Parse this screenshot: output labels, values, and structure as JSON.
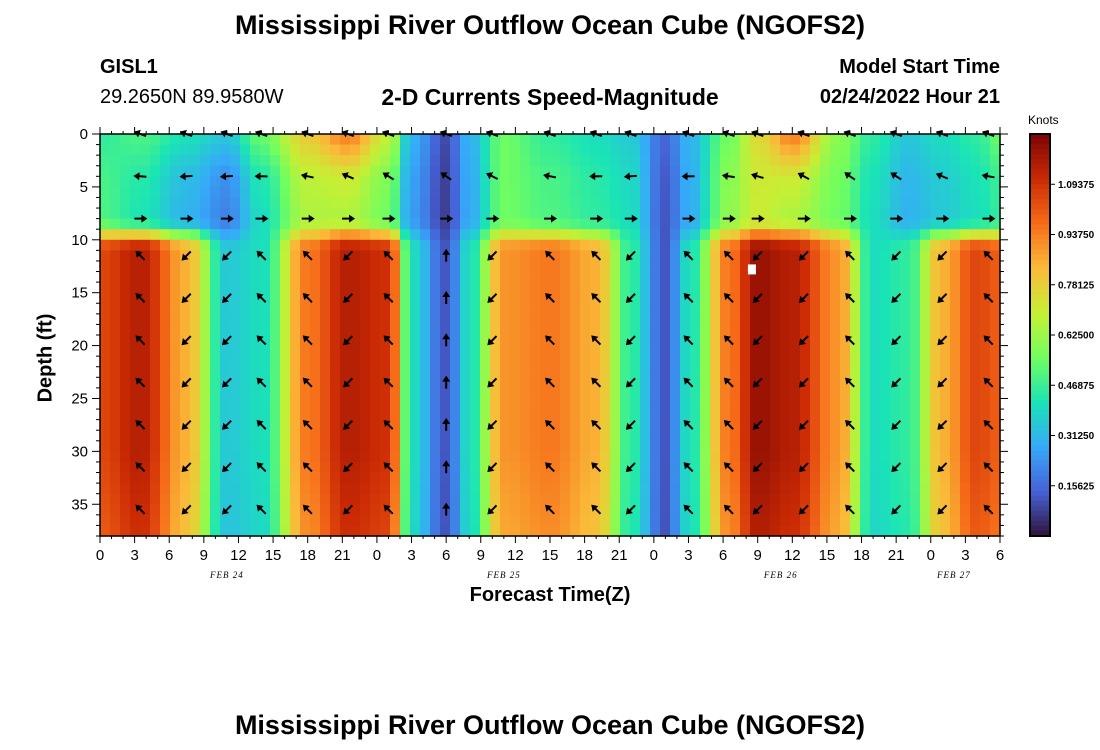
{
  "title": "Mississippi River Outflow Ocean Cube (NGOFS2)",
  "bottom_title": "Mississippi River Outflow Ocean Cube (NGOFS2)",
  "station": {
    "id": "GISL1",
    "coords": "29.2650N  89.9580W"
  },
  "subtitle": "2-D Currents Speed-Magnitude",
  "model_start": {
    "label": "Model Start Time",
    "value": "02/24/2022 Hour 21"
  },
  "colorbar": {
    "unit": "Knots",
    "ticks": [
      "0.15625",
      "0.31250",
      "0.46875",
      "0.62500",
      "0.78125",
      "0.93750",
      "1.09375"
    ],
    "tick_values": [
      0.15625,
      0.3125,
      0.46875,
      0.625,
      0.78125,
      0.9375,
      1.09375
    ],
    "min": 0.0,
    "max": 1.25,
    "colors": [
      "#30123b",
      "#4662d7",
      "#36aaf9",
      "#1ae4b6",
      "#72fe5e",
      "#c7ef34",
      "#faba39",
      "#f66b19",
      "#cb2a04",
      "#7a0403"
    ]
  },
  "chart_data": {
    "type": "heatmap",
    "title": "2-D Currents Speed-Magnitude",
    "xlabel": "Forecast Time(Z)",
    "ylabel": "Depth (ft)",
    "x_range_hours": [
      0,
      78
    ],
    "ylim": [
      38,
      0
    ],
    "x_tick_labels": [
      "0",
      "3",
      "6",
      "9",
      "12",
      "15",
      "18",
      "21",
      "0",
      "3",
      "6",
      "9",
      "12",
      "15",
      "18",
      "21",
      "0",
      "3",
      "6",
      "9",
      "12",
      "15",
      "18",
      "21",
      "0",
      "3",
      "6"
    ],
    "date_labels": [
      {
        "label": "FEB 24",
        "hour": 11
      },
      {
        "label": "FEB 25",
        "hour": 35
      },
      {
        "label": "FEB 26",
        "hour": 59
      },
      {
        "label": "FEB 27",
        "hour": 74
      }
    ],
    "y_ticks": [
      0,
      5,
      10,
      15,
      20,
      25,
      30,
      35
    ],
    "y_tick_labels": [
      "0",
      "5",
      "10",
      "15",
      "20",
      "25",
      "30",
      "35"
    ],
    "speed_profile": {
      "description": "surface-to-bottom speed (knots) per time node; shallow layer 0-9 ft and deep layer 11-38 ft",
      "hours": [
        0,
        3.5,
        7.5,
        11,
        14,
        18,
        21.5,
        25,
        27,
        30,
        32,
        35,
        39,
        43,
        46,
        49,
        51,
        54.5,
        57,
        60,
        64,
        67,
        70,
        73,
        76,
        78
      ],
      "surface": [
        0.45,
        0.5,
        0.42,
        0.35,
        0.55,
        0.8,
        0.95,
        0.7,
        0.3,
        0.1,
        0.3,
        0.55,
        0.45,
        0.4,
        0.35,
        0.15,
        0.3,
        0.55,
        0.75,
        0.95,
        0.6,
        0.45,
        0.35,
        0.4,
        0.45,
        0.55
      ],
      "mid": [
        0.5,
        0.42,
        0.3,
        0.2,
        0.4,
        0.65,
        0.65,
        0.55,
        0.25,
        0.08,
        0.28,
        0.55,
        0.5,
        0.45,
        0.4,
        0.12,
        0.28,
        0.6,
        0.7,
        0.65,
        0.55,
        0.4,
        0.3,
        0.35,
        0.4,
        0.45
      ],
      "deep": [
        1.05,
        1.15,
        0.85,
        0.35,
        0.4,
        0.95,
        1.15,
        1.1,
        0.4,
        0.12,
        0.4,
        0.9,
        0.95,
        0.85,
        0.45,
        0.12,
        0.4,
        0.95,
        1.2,
        1.15,
        0.9,
        0.4,
        0.45,
        0.85,
        1.05,
        1.0
      ]
    },
    "arrow_columns_hours": [
      3.5,
      7.5,
      11,
      14,
      18,
      21.5,
      25,
      30,
      34,
      39,
      43,
      46,
      51,
      54.5,
      57,
      61,
      65,
      69,
      73,
      77
    ],
    "arrow_depths_ft": [
      0,
      4,
      8,
      11.5,
      15.5,
      19.5,
      23.5,
      27.5,
      31.5,
      35.5
    ],
    "marker": {
      "hour": 56.5,
      "depth": 12.8
    }
  }
}
